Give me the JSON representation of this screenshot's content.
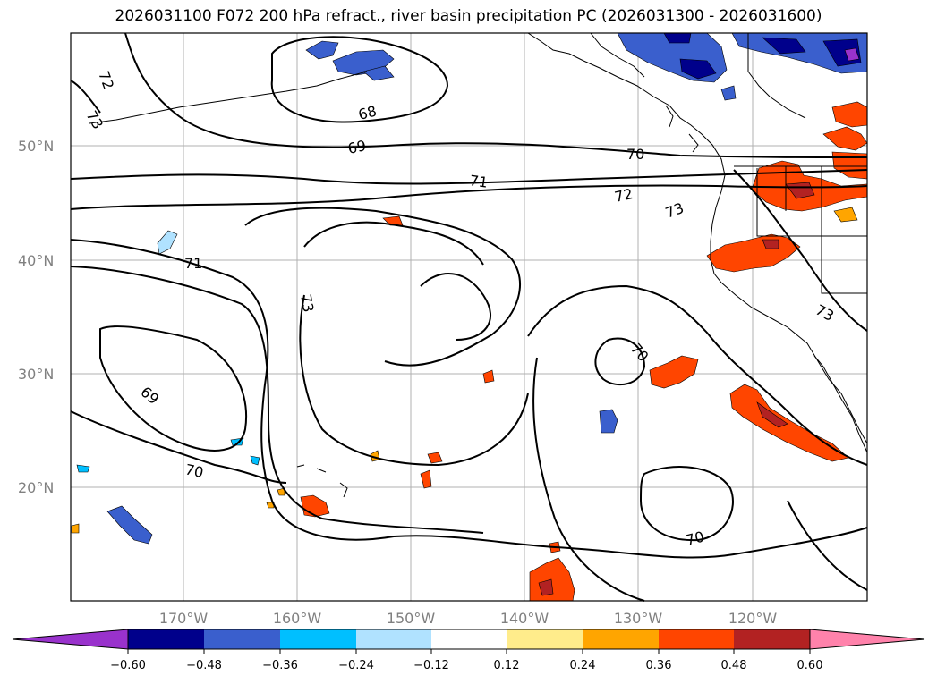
{
  "title": "2026031100 F072 200 hPa refract., river basin precipitation PC (2026031300 - 2026031600)",
  "axes": {
    "lat_labels": [
      "50°N",
      "40°N",
      "30°N",
      "20°N"
    ],
    "lon_labels": [
      "170°W",
      "160°W",
      "150°W",
      "140°W",
      "130°W",
      "120°W"
    ]
  },
  "contour_labels": [
    "72",
    "73",
    "68",
    "69",
    "70",
    "71",
    "72",
    "73",
    "71",
    "73",
    "69",
    "70",
    "70",
    "70",
    "73"
  ],
  "colorbar": {
    "ticks": [
      "−0.60",
      "−0.48",
      "−0.36",
      "−0.24",
      "−0.12",
      "0.12",
      "0.24",
      "0.36",
      "0.48",
      "0.60"
    ],
    "colors": [
      "#9932cc",
      "#00008b",
      "#3a5fcd",
      "#00bfff",
      "#b0e2ff",
      "#ffffff",
      "#ffec8b",
      "#ffa500",
      "#ff4500",
      "#b22222",
      "#ff82ab"
    ]
  }
}
